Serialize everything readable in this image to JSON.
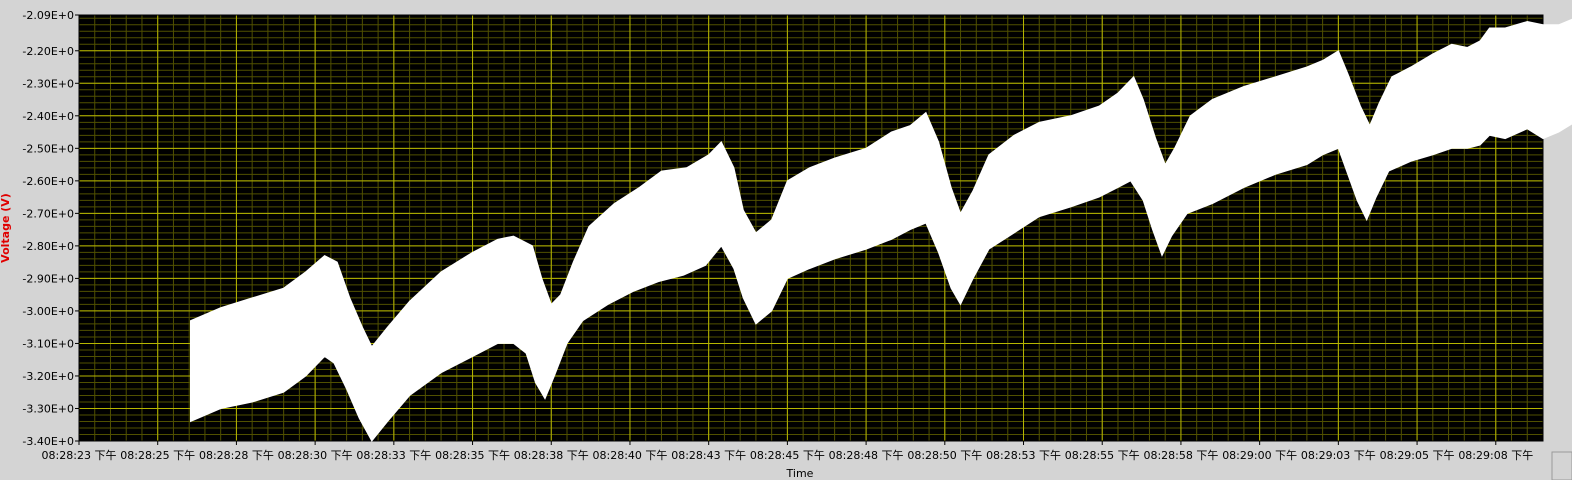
{
  "chart_data": {
    "type": "area",
    "title": "",
    "xlabel": "Time",
    "ylabel": "Voltage (V)",
    "ylim": [
      -3.4,
      -2.09
    ],
    "y_ticks": [
      {
        "value": -2.09,
        "label": "-2.09E+0"
      },
      {
        "value": -2.2,
        "label": "-2.20E+0"
      },
      {
        "value": -2.3,
        "label": "-2.30E+0"
      },
      {
        "value": -2.4,
        "label": "-2.40E+0"
      },
      {
        "value": -2.5,
        "label": "-2.50E+0"
      },
      {
        "value": -2.6,
        "label": "-2.60E+0"
      },
      {
        "value": -2.7,
        "label": "-2.70E+0"
      },
      {
        "value": -2.8,
        "label": "-2.80E+0"
      },
      {
        "value": -2.9,
        "label": "-2.90E+0"
      },
      {
        "value": -3.0,
        "label": "-3.00E+0"
      },
      {
        "value": -3.1,
        "label": "-3.10E+0"
      },
      {
        "value": -3.2,
        "label": "-3.20E+0"
      },
      {
        "value": -3.3,
        "label": "-3.30E+0"
      },
      {
        "value": -3.4,
        "label": "-3.40E+0"
      }
    ],
    "x_ticks": [
      {
        "label": "08:28:23 下午"
      },
      {
        "label": "08:28:25 下午"
      },
      {
        "label": "08:28:28 下午"
      },
      {
        "label": "08:28:30 下午"
      },
      {
        "label": "08:28:33 下午"
      },
      {
        "label": "08:28:35 下午"
      },
      {
        "label": "08:28:38 下午"
      },
      {
        "label": "08:28:40 下午"
      },
      {
        "label": "08:28:43 下午"
      },
      {
        "label": "08:28:45 下午"
      },
      {
        "label": "08:28:48 下午"
      },
      {
        "label": "08:28:50 下午"
      },
      {
        "label": "08:28:53 下午"
      },
      {
        "label": "08:28:55 下午"
      },
      {
        "label": "08:28:58 下午"
      },
      {
        "label": "08:29:00 下午"
      },
      {
        "label": "08:29:03 下午"
      },
      {
        "label": "08:29:05 下午"
      },
      {
        "label": "08:29:08 下午"
      }
    ],
    "x_tick_interval_s": 2.5,
    "x_range_s": [
      0,
      46.5
    ],
    "grid": true,
    "colors": {
      "plot_background": "#000000",
      "frame": "#d4d4d4",
      "major_grid": "#b6b600",
      "minor_grid": "#505000",
      "signal": "#ffffff",
      "ylabel": "#e00000"
    },
    "series": [
      {
        "upper": [
          [
            3.54,
            -3.03
          ],
          [
            4.5,
            -2.99
          ],
          [
            5.5,
            -2.96
          ],
          [
            6.5,
            -2.93
          ],
          [
            7.2,
            -2.88
          ],
          [
            7.8,
            -2.83
          ],
          [
            8.2,
            -2.85
          ],
          [
            8.6,
            -2.96
          ],
          [
            9.0,
            -3.05
          ],
          [
            9.3,
            -3.11
          ],
          [
            9.8,
            -3.05
          ],
          [
            10.5,
            -2.97
          ],
          [
            11.5,
            -2.88
          ],
          [
            12.5,
            -2.82
          ],
          [
            13.3,
            -2.78
          ],
          [
            13.8,
            -2.77
          ],
          [
            14.4,
            -2.8
          ],
          [
            14.7,
            -2.9
          ],
          [
            15.0,
            -2.98
          ],
          [
            15.3,
            -2.95
          ],
          [
            15.7,
            -2.85
          ],
          [
            16.2,
            -2.74
          ],
          [
            17.0,
            -2.67
          ],
          [
            17.8,
            -2.62
          ],
          [
            18.5,
            -2.57
          ],
          [
            19.3,
            -2.56
          ],
          [
            20.0,
            -2.52
          ],
          [
            20.4,
            -2.48
          ],
          [
            20.8,
            -2.56
          ],
          [
            21.1,
            -2.69
          ],
          [
            21.5,
            -2.76
          ],
          [
            22.0,
            -2.72
          ],
          [
            22.5,
            -2.6
          ],
          [
            23.2,
            -2.56
          ],
          [
            24.0,
            -2.53
          ],
          [
            25.0,
            -2.5
          ],
          [
            25.8,
            -2.45
          ],
          [
            26.4,
            -2.43
          ],
          [
            26.9,
            -2.39
          ],
          [
            27.3,
            -2.48
          ],
          [
            27.7,
            -2.62
          ],
          [
            28.0,
            -2.7
          ],
          [
            28.4,
            -2.63
          ],
          [
            28.9,
            -2.52
          ],
          [
            29.7,
            -2.46
          ],
          [
            30.5,
            -2.42
          ],
          [
            31.5,
            -2.4
          ],
          [
            32.4,
            -2.37
          ],
          [
            33.0,
            -2.33
          ],
          [
            33.5,
            -2.28
          ],
          [
            33.8,
            -2.35
          ],
          [
            34.2,
            -2.47
          ],
          [
            34.5,
            -2.55
          ],
          [
            34.8,
            -2.5
          ],
          [
            35.3,
            -2.4
          ],
          [
            36.0,
            -2.35
          ],
          [
            37.0,
            -2.31
          ],
          [
            38.0,
            -2.28
          ],
          [
            39.0,
            -2.25
          ],
          [
            39.5,
            -2.23
          ],
          [
            40.0,
            -2.2
          ],
          [
            40.3,
            -2.27
          ],
          [
            40.7,
            -2.37
          ],
          [
            41.0,
            -2.43
          ],
          [
            41.3,
            -2.36
          ],
          [
            41.7,
            -2.28
          ],
          [
            42.3,
            -2.25
          ],
          [
            43.0,
            -2.21
          ],
          [
            43.6,
            -2.18
          ],
          [
            44.1,
            -2.19
          ],
          [
            44.5,
            -2.17
          ],
          [
            44.8,
            -2.13
          ],
          [
            45.3,
            -2.13
          ],
          [
            46.0,
            -2.11
          ],
          [
            46.5,
            -2.12
          ],
          [
            47.0,
            -2.12
          ],
          [
            47.5,
            -2.1
          ],
          [
            48.0,
            -2.12
          ],
          [
            48.3,
            -2.27
          ],
          [
            48.7,
            -2.38
          ],
          [
            49.0,
            -2.3
          ],
          [
            49.4,
            -2.23
          ],
          [
            50.0,
            -2.18
          ],
          [
            50.7,
            -2.15
          ],
          [
            51.3,
            -2.13
          ],
          [
            52.0,
            -2.1
          ],
          [
            52.4,
            -2.1
          ],
          [
            52.6,
            -2.1
          ]
        ],
        "lower": [
          [
            3.54,
            -3.34
          ],
          [
            4.5,
            -3.3
          ],
          [
            5.5,
            -3.28
          ],
          [
            6.5,
            -3.25
          ],
          [
            7.2,
            -3.2
          ],
          [
            7.8,
            -3.14
          ],
          [
            8.1,
            -3.16
          ],
          [
            8.5,
            -3.24
          ],
          [
            8.9,
            -3.33
          ],
          [
            9.3,
            -3.4
          ],
          [
            9.8,
            -3.34
          ],
          [
            10.5,
            -3.26
          ],
          [
            11.5,
            -3.19
          ],
          [
            12.5,
            -3.14
          ],
          [
            13.3,
            -3.1
          ],
          [
            13.8,
            -3.1
          ],
          [
            14.2,
            -3.13
          ],
          [
            14.5,
            -3.22
          ],
          [
            14.8,
            -3.27
          ],
          [
            15.1,
            -3.2
          ],
          [
            15.5,
            -3.1
          ],
          [
            16.0,
            -3.03
          ],
          [
            16.8,
            -2.98
          ],
          [
            17.6,
            -2.94
          ],
          [
            18.4,
            -2.91
          ],
          [
            19.2,
            -2.89
          ],
          [
            19.9,
            -2.86
          ],
          [
            20.4,
            -2.8
          ],
          [
            20.8,
            -2.87
          ],
          [
            21.1,
            -2.96
          ],
          [
            21.5,
            -3.04
          ],
          [
            22.0,
            -3.0
          ],
          [
            22.5,
            -2.9
          ],
          [
            23.2,
            -2.87
          ],
          [
            24.0,
            -2.84
          ],
          [
            25.0,
            -2.81
          ],
          [
            25.8,
            -2.78
          ],
          [
            26.4,
            -2.75
          ],
          [
            26.9,
            -2.73
          ],
          [
            27.3,
            -2.82
          ],
          [
            27.7,
            -2.93
          ],
          [
            28.0,
            -2.98
          ],
          [
            28.4,
            -2.9
          ],
          [
            28.9,
            -2.81
          ],
          [
            29.7,
            -2.76
          ],
          [
            30.5,
            -2.71
          ],
          [
            31.5,
            -2.68
          ],
          [
            32.4,
            -2.65
          ],
          [
            33.0,
            -2.62
          ],
          [
            33.4,
            -2.6
          ],
          [
            33.8,
            -2.66
          ],
          [
            34.1,
            -2.75
          ],
          [
            34.4,
            -2.83
          ],
          [
            34.7,
            -2.77
          ],
          [
            35.2,
            -2.7
          ],
          [
            36.0,
            -2.67
          ],
          [
            37.0,
            -2.62
          ],
          [
            38.0,
            -2.58
          ],
          [
            39.0,
            -2.55
          ],
          [
            39.5,
            -2.52
          ],
          [
            40.0,
            -2.5
          ],
          [
            40.3,
            -2.58
          ],
          [
            40.6,
            -2.66
          ],
          [
            40.9,
            -2.72
          ],
          [
            41.2,
            -2.65
          ],
          [
            41.6,
            -2.57
          ],
          [
            42.3,
            -2.54
          ],
          [
            43.0,
            -2.52
          ],
          [
            43.6,
            -2.5
          ],
          [
            44.1,
            -2.5
          ],
          [
            44.5,
            -2.49
          ],
          [
            44.8,
            -2.46
          ],
          [
            45.3,
            -2.47
          ],
          [
            46.0,
            -2.44
          ],
          [
            46.5,
            -2.47
          ],
          [
            47.0,
            -2.45
          ],
          [
            47.5,
            -2.42
          ],
          [
            48.0,
            -2.43
          ],
          [
            48.3,
            -2.5
          ],
          [
            48.6,
            -2.58
          ],
          [
            48.9,
            -2.65
          ],
          [
            49.2,
            -2.58
          ],
          [
            49.6,
            -2.5
          ],
          [
            50.0,
            -2.47
          ],
          [
            50.7,
            -2.45
          ],
          [
            51.3,
            -2.43
          ],
          [
            52.0,
            -2.43
          ],
          [
            52.4,
            -2.42
          ],
          [
            52.6,
            -2.42
          ]
        ]
      }
    ]
  }
}
